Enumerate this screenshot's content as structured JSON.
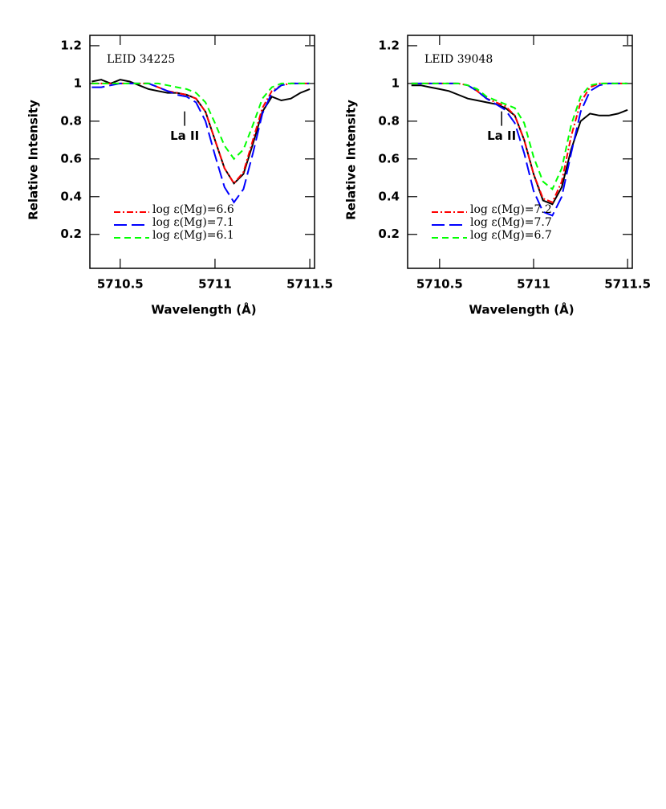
{
  "chart_data": [
    {
      "type": "line",
      "label": "LEID 34225",
      "xlabel": "Wavelength (Å)",
      "ylabel": "Relative Intensity",
      "xlim": [
        5710.34,
        5711.525
      ],
      "ylim": [
        0.02,
        1.255
      ],
      "xticks": [
        5710.5,
        5711,
        5711.5
      ],
      "yticks": [
        0.2,
        0.4,
        0.6,
        0.8,
        1,
        1.2
      ],
      "legend": "lower left",
      "annotations": [
        {
          "text": "La II",
          "x": 5710.84,
          "y": 0.72
        }
      ],
      "x": [
        5710.35,
        5710.4,
        5710.45,
        5710.5,
        5710.55,
        5710.6,
        5710.65,
        5710.7,
        5710.75,
        5710.8,
        5710.85,
        5710.9,
        5710.95,
        5711.0,
        5711.05,
        5711.1,
        5711.15,
        5711.2,
        5711.25,
        5711.3,
        5711.35,
        5711.4,
        5711.45,
        5711.5
      ],
      "series": [
        {
          "color": "#000000",
          "dash": "solid",
          "values": [
            1.01,
            1.02,
            1.0,
            1.02,
            1.01,
            0.99,
            0.97,
            0.96,
            0.95,
            0.95,
            0.94,
            0.92,
            0.85,
            0.7,
            0.55,
            0.47,
            0.52,
            0.68,
            0.85,
            0.93,
            0.91,
            0.92,
            0.95,
            0.97
          ]
        },
        {
          "name": "log ε(Mg)=6.6",
          "color": "#ff0000",
          "dash": "dashdot",
          "values": [
            1.0,
            1.0,
            1.0,
            1.0,
            1.0,
            1.0,
            1.0,
            0.98,
            0.96,
            0.95,
            0.94,
            0.92,
            0.85,
            0.7,
            0.55,
            0.47,
            0.53,
            0.7,
            0.87,
            0.96,
            0.99,
            1.0,
            1.0,
            1.0
          ]
        },
        {
          "name": "log ε(Mg)=7.1",
          "color": "#0000ff",
          "dash": "longdash",
          "values": [
            0.98,
            0.98,
            0.99,
            1.0,
            1.0,
            1.0,
            1.0,
            0.98,
            0.96,
            0.94,
            0.93,
            0.9,
            0.8,
            0.62,
            0.45,
            0.37,
            0.44,
            0.63,
            0.84,
            0.95,
            0.99,
            1.0,
            1.0,
            1.0
          ]
        },
        {
          "name": "log ε(Mg)=6.1",
          "color": "#00ff00",
          "dash": "dash",
          "values": [
            1.0,
            1.0,
            1.0,
            1.0,
            1.0,
            1.0,
            1.0,
            1.0,
            0.99,
            0.98,
            0.97,
            0.95,
            0.9,
            0.79,
            0.67,
            0.6,
            0.65,
            0.78,
            0.92,
            0.98,
            1.0,
            1.0,
            1.0,
            1.0
          ]
        }
      ]
    },
    {
      "type": "line",
      "label": "LEID 39048",
      "xlabel": "Wavelength (Å)",
      "ylabel": "Relative Intensity",
      "xlim": [
        5710.33,
        5711.525
      ],
      "ylim": [
        0.02,
        1.255
      ],
      "xticks": [
        5710.5,
        5711,
        5711.5
      ],
      "yticks": [
        0.2,
        0.4,
        0.6,
        0.8,
        1,
        1.2
      ],
      "legend": "lower left",
      "annotations": [
        {
          "text": "La II",
          "x": 5710.83,
          "y": 0.72
        }
      ],
      "x": [
        5710.35,
        5710.4,
        5710.45,
        5710.5,
        5710.55,
        5710.6,
        5710.65,
        5710.7,
        5710.75,
        5710.8,
        5710.85,
        5710.9,
        5710.95,
        5711.0,
        5711.05,
        5711.1,
        5711.15,
        5711.2,
        5711.25,
        5711.3,
        5711.35,
        5711.4,
        5711.45,
        5711.5
      ],
      "series": [
        {
          "color": "#000000",
          "dash": "solid",
          "values": [
            0.99,
            0.99,
            0.98,
            0.97,
            0.96,
            0.94,
            0.92,
            0.91,
            0.9,
            0.89,
            0.87,
            0.83,
            0.7,
            0.52,
            0.38,
            0.36,
            0.45,
            0.65,
            0.8,
            0.84,
            0.83,
            0.83,
            0.84,
            0.86
          ]
        },
        {
          "name": "log ε(Mg)=7.2",
          "color": "#ff0000",
          "dash": "dashdot",
          "values": [
            1.0,
            1.0,
            1.0,
            1.0,
            1.0,
            1.0,
            0.99,
            0.96,
            0.92,
            0.9,
            0.88,
            0.83,
            0.7,
            0.52,
            0.39,
            0.37,
            0.48,
            0.72,
            0.9,
            0.98,
            1.0,
            1.0,
            1.0,
            1.0
          ]
        },
        {
          "name": "log ε(Mg)=7.7",
          "color": "#0000ff",
          "dash": "longdash",
          "values": [
            1.0,
            1.0,
            1.0,
            1.0,
            1.0,
            1.0,
            0.99,
            0.96,
            0.92,
            0.89,
            0.86,
            0.79,
            0.63,
            0.43,
            0.32,
            0.3,
            0.4,
            0.63,
            0.85,
            0.96,
            0.99,
            1.0,
            1.0,
            1.0
          ]
        },
        {
          "name": "log ε(Mg)=6.7",
          "color": "#00ff00",
          "dash": "dash",
          "values": [
            1.0,
            1.0,
            1.0,
            1.0,
            1.0,
            1.0,
            0.99,
            0.97,
            0.93,
            0.91,
            0.89,
            0.87,
            0.79,
            0.61,
            0.48,
            0.44,
            0.55,
            0.78,
            0.93,
            0.99,
            1.0,
            1.0,
            1.0,
            1.0
          ]
        }
      ]
    }
  ]
}
